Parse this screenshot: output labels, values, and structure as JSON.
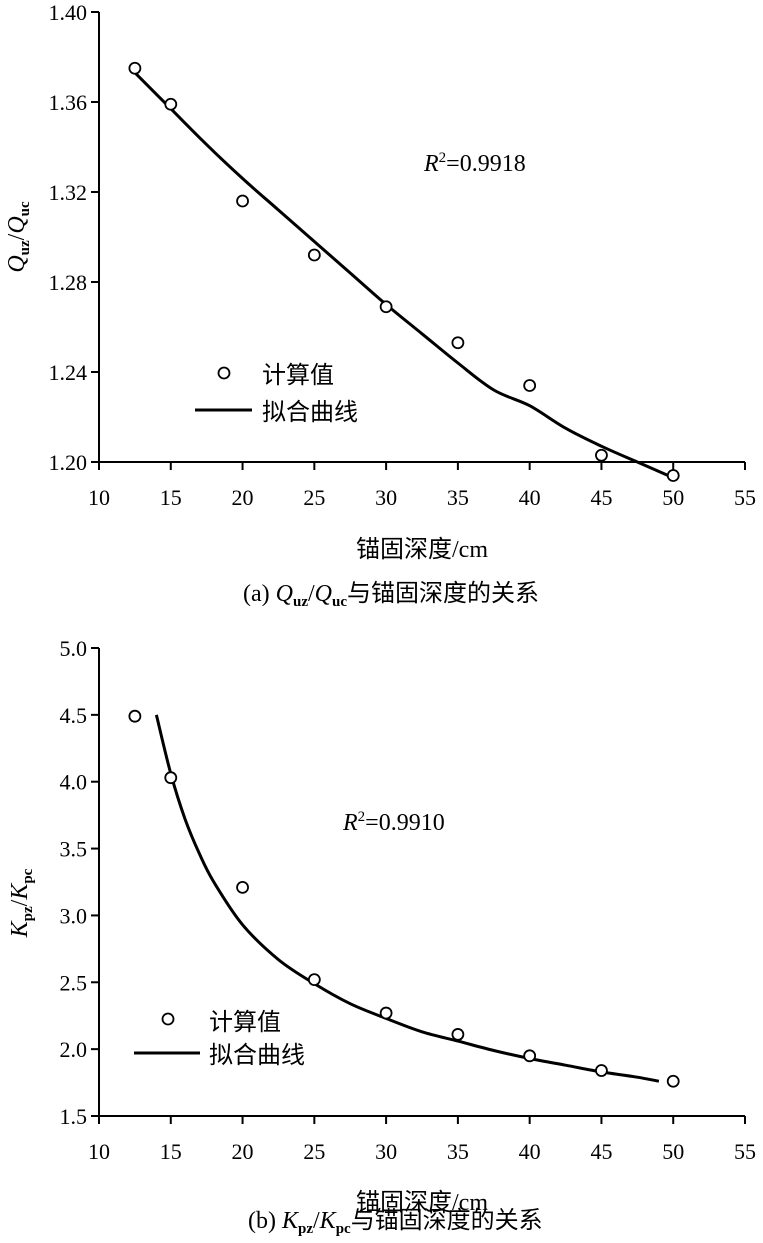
{
  "chart_data": [
    {
      "type": "scatter",
      "panel": "a",
      "xlabel": "锚固深度/cm",
      "ylabel": {
        "q1": "Q",
        "q1_sub": "uz",
        "sep": "/",
        "q2": "Q",
        "q2_sub": "uc"
      },
      "xlim": [
        10,
        55
      ],
      "ylim": [
        1.2,
        1.4
      ],
      "xticks": [
        10,
        15,
        20,
        25,
        30,
        35,
        40,
        45,
        50,
        55
      ],
      "yticks": [
        "1.20",
        "1.24",
        "1.28",
        "1.32",
        "1.36",
        "1.40"
      ],
      "series": [
        {
          "name": "计算值",
          "kind": "markers",
          "x": [
            12.5,
            15,
            20,
            25,
            30,
            35,
            40,
            45,
            50
          ],
          "y": [
            1.375,
            1.359,
            1.316,
            1.292,
            1.269,
            1.253,
            1.234,
            1.203,
            1.194
          ]
        },
        {
          "name": "拟合曲线",
          "kind": "line",
          "x": [
            12.5,
            15,
            17.5,
            20,
            22.5,
            25,
            27.5,
            30,
            32.5,
            35,
            37.5,
            40,
            42.5,
            45,
            47.5,
            50
          ],
          "y": [
            1.373,
            1.357,
            1.341,
            1.326,
            1.312,
            1.298,
            1.284,
            1.27,
            1.257,
            1.244,
            1.232,
            1.225,
            1.215,
            1.207,
            1.2,
            1.193
          ]
        }
      ],
      "annotation": {
        "r": "R",
        "sup": "2",
        "value": "=0.9918"
      },
      "legend": {
        "placement": "lower-left",
        "entries": [
          "计算值",
          "拟合曲线"
        ]
      },
      "caption": {
        "prefix": "(a) ",
        "q1": "Q",
        "q1_sub": "uz",
        "sep": "/",
        "q2": "Q",
        "q2_sub": "uc",
        "suffix": "与锚固深度的关系"
      }
    },
    {
      "type": "scatter",
      "panel": "b",
      "xlabel": "锚固深度/cm",
      "ylabel": {
        "q1": "K",
        "q1_sub": "pz",
        "sep": "/",
        "q2": "K",
        "q2_sub": "pc"
      },
      "xlim": [
        10,
        55
      ],
      "ylim": [
        1.5,
        5.0
      ],
      "xticks": [
        10,
        15,
        20,
        25,
        30,
        35,
        40,
        45,
        50,
        55
      ],
      "yticks": [
        "1.5",
        "2.0",
        "2.5",
        "3.0",
        "3.5",
        "4.0",
        "4.5",
        "5.0"
      ],
      "series": [
        {
          "name": "计算值",
          "kind": "markers",
          "x": [
            12.5,
            15,
            20,
            25,
            30,
            35,
            40,
            45,
            50
          ],
          "y": [
            4.49,
            4.03,
            3.21,
            2.52,
            2.27,
            2.11,
            1.95,
            1.84,
            1.76
          ]
        },
        {
          "name": "拟合曲线",
          "kind": "line",
          "x": [
            14,
            15,
            16,
            17,
            18,
            20,
            22.5,
            25,
            27.5,
            30,
            32.5,
            35,
            37.5,
            40,
            42.5,
            45,
            47.5,
            49
          ],
          "y": [
            4.5,
            4.06,
            3.72,
            3.46,
            3.25,
            2.93,
            2.67,
            2.49,
            2.34,
            2.23,
            2.13,
            2.06,
            1.99,
            1.93,
            1.88,
            1.83,
            1.79,
            1.76
          ]
        }
      ],
      "annotation": {
        "r": "R",
        "sup": "2",
        "value": "=0.9910"
      },
      "legend": {
        "placement": "lower-left",
        "entries": [
          "计算值",
          "拟合曲线"
        ]
      },
      "caption": {
        "prefix": "(b) ",
        "q1": "K",
        "q1_sub": "pz",
        "sep": "/",
        "q2": "K",
        "q2_sub": "pc",
        "suffix": "与锚固深度的关系"
      }
    }
  ]
}
